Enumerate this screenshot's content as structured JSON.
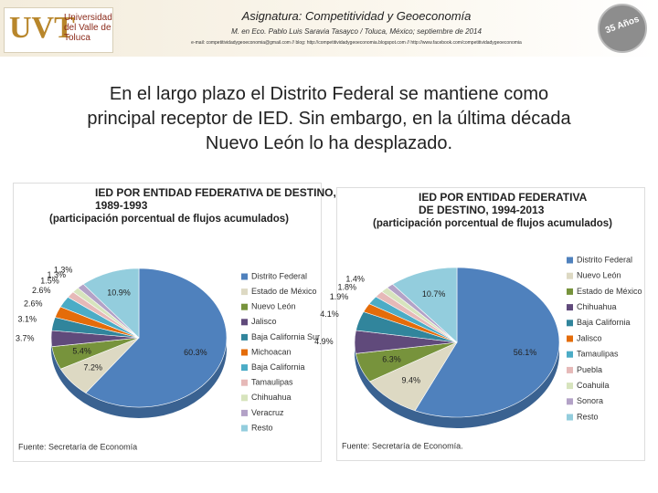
{
  "header": {
    "logo_text": "UVT",
    "university": "Universidad del Valle de Toluca",
    "title": "Asignatura: Competitividad y Geoeconomía",
    "subtitle": "M. en Eco. Pablo Luis Saravia Tasayco / Toluca, México; septiembre de 2014",
    "contact": "e-mail: competitividadygeoeconomia@gmail.com // blog: http://competitividadygeoeconomia.blogspot.com // http://www.facebook.com/competitividadygeoeconomia",
    "badge": "35 Años"
  },
  "body_text": {
    "lines": [
      "En el largo plazo el Distrito Federal se mantiene como",
      "principal receptor de IED. Sin embargo, en la última década",
      "Nuevo León lo ha desplazado."
    ]
  },
  "chart_data": [
    {
      "type": "pie",
      "title_lines": [
        "IED POR ENTIDAD FEDERATIVA DE DESTINO,",
        "1989-1993"
      ],
      "subtitle": "(participación porcentual de flujos acumulados)",
      "categories": [
        "Distrito Federal",
        "Estado de México",
        "Nuevo León",
        "Jalisco",
        "Baja California Sur",
        "Michoacan",
        "Baja California",
        "Tamaulipas",
        "Chihuahua",
        "Veracruz",
        "Resto"
      ],
      "values": [
        60.3,
        7.2,
        5.4,
        3.7,
        3.1,
        2.6,
        2.6,
        1.5,
        1.3,
        1.3,
        10.9
      ],
      "value_labels": [
        "60.3%",
        "7.2%",
        "5.4%",
        "3.7%",
        "3.1%",
        "2.6%",
        "2.6%",
        "1.5%",
        "1.3%",
        "1.3%",
        "10.9%"
      ],
      "colors": [
        "#4f81bd",
        "#ddd9c3",
        "#77933c",
        "#604a7b",
        "#31859c",
        "#e46c0a",
        "#4bacc6",
        "#e6b9b8",
        "#d7e4bd",
        "#b3a2c7",
        "#93cddd"
      ],
      "source": "Fuente: Secretaría de Economía"
    },
    {
      "type": "pie",
      "title_lines": [
        "IED POR ENTIDAD FEDERATIVA",
        "DE DESTINO, 1994-2013"
      ],
      "subtitle": "(participación porcentual de flujos acumulados)",
      "categories": [
        "Distrito Federal",
        "Nuevo León",
        "Estado de México",
        "Chihuahua",
        "Baja California",
        "Jalisco",
        "Tamaulipas",
        "Puebla",
        "Coahuila",
        "Sonora",
        "Resto"
      ],
      "values": [
        56.1,
        9.4,
        6.3,
        4.9,
        4.1,
        1.9,
        1.8,
        1.4,
        1.2,
        1.1,
        10.7
      ],
      "value_labels": [
        "56.1%",
        "9.4%",
        "6.3%",
        "4.9%",
        "4.1%",
        "1.9%",
        "1.8%",
        "1.4%",
        null,
        null,
        "10.7%"
      ],
      "colors": [
        "#4f81bd",
        "#ddd9c3",
        "#77933c",
        "#604a7b",
        "#31859c",
        "#e46c0a",
        "#4bacc6",
        "#e6b9b8",
        "#d7e4bd",
        "#b3a2c7",
        "#93cddd"
      ],
      "source": "Fuente: Secretaría de Economía."
    }
  ]
}
